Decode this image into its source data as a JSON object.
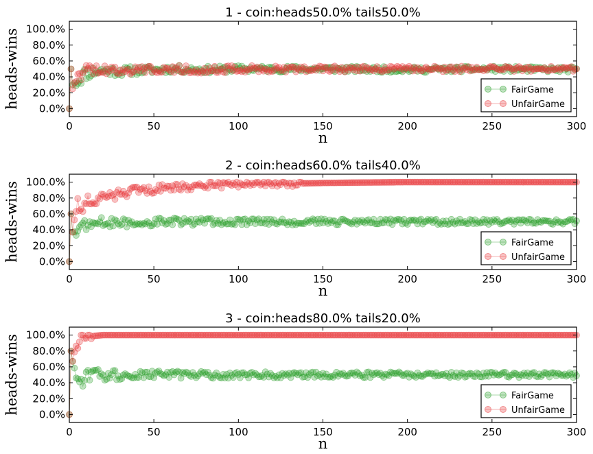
{
  "chart_data": [
    {
      "type": "line",
      "title": "1 - coin:heads50.0% tails50.0%",
      "xlabel": "n",
      "ylabel": "heads-wins",
      "xlim": [
        0,
        300
      ],
      "ylim": [
        -0.1,
        1.1
      ],
      "xticks": [
        "0",
        "50",
        "100",
        "150",
        "200",
        "250",
        "300"
      ],
      "yticks": [
        "0.0%",
        "20.0%",
        "40.0%",
        "60.0%",
        "80.0%",
        "100.0%"
      ],
      "legend_position": "bottom-right",
      "series": [
        {
          "name": "FairGame",
          "color": "#2ca02c",
          "target": 0.5,
          "x": [
            0,
            1,
            2,
            4,
            6,
            8,
            10,
            15,
            20,
            30,
            40,
            50,
            60,
            80,
            100,
            150,
            200,
            250,
            300
          ],
          "values": [
            0.0,
            0.5,
            0.3,
            0.35,
            0.38,
            0.42,
            0.45,
            0.47,
            0.48,
            0.47,
            0.48,
            0.49,
            0.5,
            0.49,
            0.5,
            0.5,
            0.49,
            0.5,
            0.49
          ]
        },
        {
          "name": "UnfairGame",
          "color": "#e8393b",
          "target": 0.5,
          "x": [
            0,
            1,
            2,
            4,
            6,
            8,
            10,
            15,
            20,
            30,
            40,
            50,
            60,
            80,
            100,
            150,
            200,
            250,
            300
          ],
          "values": [
            0.0,
            0.5,
            0.25,
            0.4,
            0.45,
            0.47,
            0.48,
            0.5,
            0.49,
            0.48,
            0.49,
            0.5,
            0.5,
            0.49,
            0.5,
            0.5,
            0.5,
            0.5,
            0.5
          ]
        }
      ]
    },
    {
      "type": "line",
      "title": "2 - coin:heads60.0% tails40.0%",
      "xlabel": "n",
      "ylabel": "heads-wins",
      "xlim": [
        0,
        300
      ],
      "ylim": [
        -0.1,
        1.1
      ],
      "xticks": [
        "0",
        "50",
        "100",
        "150",
        "200",
        "250",
        "300"
      ],
      "yticks": [
        "0.0%",
        "20.0%",
        "40.0%",
        "60.0%",
        "80.0%",
        "100.0%"
      ],
      "legend_position": "bottom-right",
      "series": [
        {
          "name": "FairGame",
          "color": "#2ca02c",
          "target": 0.5,
          "x": [
            0,
            1,
            2,
            4,
            6,
            8,
            10,
            15,
            20,
            30,
            40,
            50,
            60,
            80,
            100,
            150,
            200,
            250,
            300
          ],
          "values": [
            0.0,
            0.6,
            0.37,
            0.38,
            0.42,
            0.45,
            0.47,
            0.48,
            0.49,
            0.48,
            0.49,
            0.5,
            0.5,
            0.5,
            0.5,
            0.5,
            0.5,
            0.5,
            0.5
          ]
        },
        {
          "name": "UnfairGame",
          "color": "#e8393b",
          "target": 1.0,
          "x": [
            0,
            1,
            2,
            4,
            6,
            8,
            10,
            15,
            20,
            30,
            40,
            50,
            60,
            80,
            100,
            150,
            200,
            250,
            300
          ],
          "values": [
            0.0,
            0.6,
            0.37,
            0.68,
            0.7,
            0.72,
            0.74,
            0.78,
            0.8,
            0.85,
            0.89,
            0.91,
            0.93,
            0.96,
            0.97,
            0.99,
            1.0,
            1.0,
            1.0
          ]
        }
      ]
    },
    {
      "type": "line",
      "title": "3 - coin:heads80.0% tails20.0%",
      "xlabel": "n",
      "ylabel": "heads-wins",
      "xlim": [
        0,
        300
      ],
      "ylim": [
        -0.1,
        1.1
      ],
      "xticks": [
        "0",
        "50",
        "100",
        "150",
        "200",
        "250",
        "300"
      ],
      "yticks": [
        "0.0%",
        "20.0%",
        "40.0%",
        "60.0%",
        "80.0%",
        "100.0%"
      ],
      "legend_position": "bottom-right",
      "series": [
        {
          "name": "FairGame",
          "color": "#2ca02c",
          "target": 0.5,
          "x": [
            0,
            1,
            2,
            4,
            6,
            8,
            10,
            15,
            20,
            30,
            40,
            50,
            60,
            80,
            100,
            150,
            200,
            250,
            300
          ],
          "values": [
            0.0,
            0.8,
            0.67,
            0.5,
            0.32,
            0.45,
            0.48,
            0.5,
            0.49,
            0.5,
            0.5,
            0.5,
            0.5,
            0.5,
            0.5,
            0.5,
            0.5,
            0.5,
            0.5
          ]
        },
        {
          "name": "UnfairGame",
          "color": "#e8393b",
          "target": 1.0,
          "x": [
            0,
            1,
            2,
            4,
            6,
            8,
            10,
            15,
            20,
            30,
            40,
            50,
            60,
            80,
            100,
            150,
            200,
            250,
            300
          ],
          "values": [
            0.0,
            0.8,
            0.67,
            0.9,
            0.93,
            0.95,
            0.97,
            0.99,
            1.0,
            1.0,
            1.0,
            1.0,
            1.0,
            1.0,
            1.0,
            1.0,
            1.0,
            1.0,
            1.0
          ]
        }
      ]
    }
  ]
}
